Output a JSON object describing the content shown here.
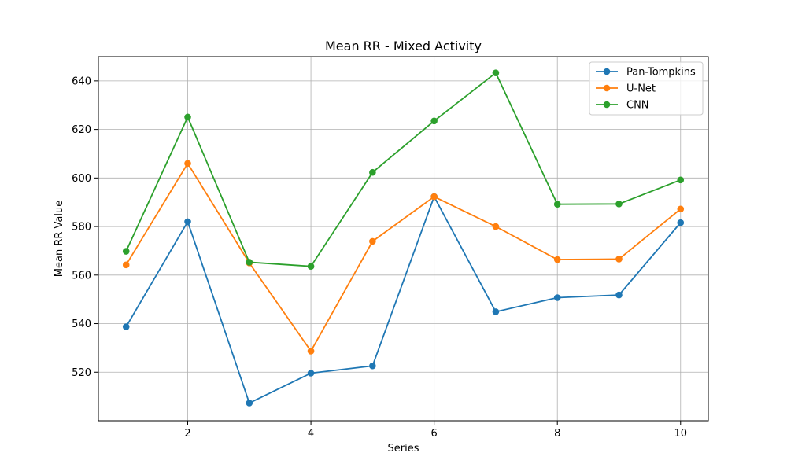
{
  "chart_data": {
    "type": "line",
    "title": "Mean RR - Mixed Activity",
    "xlabel": "Series",
    "ylabel": "Mean RR Value",
    "x": [
      1,
      2,
      3,
      4,
      5,
      6,
      7,
      8,
      9,
      10
    ],
    "xlim": [
      0.55,
      10.45
    ],
    "ylim": [
      500,
      650
    ],
    "xticks": [
      2,
      4,
      6,
      8,
      10
    ],
    "yticks": [
      520,
      540,
      560,
      580,
      600,
      620,
      640
    ],
    "grid": true,
    "legend_position": "top-right",
    "series": [
      {
        "name": "Pan-Tompkins",
        "color": "#1f77b4",
        "values": [
          538.7,
          582.0,
          507.3,
          519.6,
          522.6,
          592.3,
          544.9,
          550.7,
          551.8,
          581.6
        ]
      },
      {
        "name": "U-Net",
        "color": "#ff7f0e",
        "values": [
          564.2,
          606.0,
          565.0,
          528.7,
          573.9,
          592.3,
          580.0,
          566.4,
          566.6,
          587.2
        ]
      },
      {
        "name": "CNN",
        "color": "#2ca02c",
        "values": [
          569.8,
          625.1,
          565.3,
          563.6,
          602.3,
          623.5,
          643.3,
          589.2,
          589.3,
          599.2
        ]
      }
    ]
  }
}
